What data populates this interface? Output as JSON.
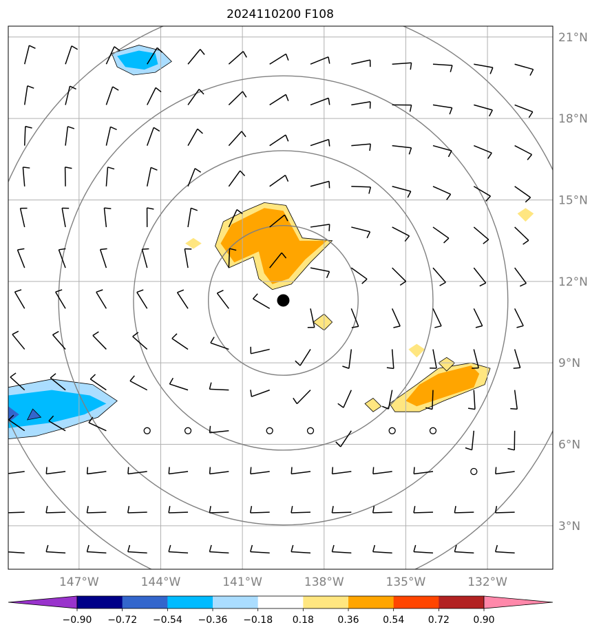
{
  "title": "2024110200 F108",
  "map": {
    "lon_range": [
      -149.6,
      -129.6
    ],
    "lat_range": [
      1.4,
      21.4
    ],
    "grid_lons": [
      -147,
      -144,
      -141,
      -138,
      -135,
      -132
    ],
    "grid_lats": [
      3,
      6,
      9,
      12,
      15,
      18,
      21
    ],
    "lon_labels": [
      "147°W",
      "144°W",
      "141°W",
      "138°W",
      "135°W",
      "132°W"
    ],
    "lat_labels": [
      "3°N",
      "6°N",
      "9°N",
      "12°N",
      "15°N",
      "18°N",
      "21°N"
    ],
    "storm_center": {
      "lon": -139.5,
      "lat": 11.3
    },
    "range_rings_deg": [
      2.75,
      5.5,
      8.25,
      11.0
    ],
    "colors": {
      "grid": "#b0b0b0",
      "ring": "#808080",
      "barb": "#000000",
      "storm": "#000000",
      "label": "#808080"
    }
  },
  "colorbar": {
    "tick_labels": [
      "−0.90",
      "−0.72",
      "−0.54",
      "−0.36",
      "−0.18",
      "0.18",
      "0.36",
      "0.54",
      "0.72",
      "0.90"
    ],
    "colors": [
      "#9933cc",
      "#000088",
      "#3366cc",
      "#00bbff",
      "#aaddff",
      "#ffffff",
      "#ffe680",
      "#ffa500",
      "#ff4500",
      "#b22222",
      "#ff88aa"
    ]
  },
  "fields": {
    "positive": [
      {
        "level": "0.18",
        "color": "#ffe680",
        "points": [
          [
            -140.9,
            14.6
          ],
          [
            -140.2,
            14.9
          ],
          [
            -139.4,
            14.8
          ],
          [
            -138.8,
            13.6
          ],
          [
            -137.7,
            13.5
          ],
          [
            -138.5,
            12.7
          ],
          [
            -139.2,
            11.9
          ],
          [
            -139.9,
            11.7
          ],
          [
            -140.4,
            12.1
          ],
          [
            -140.6,
            12.9
          ],
          [
            -141.5,
            12.5
          ],
          [
            -142.0,
            13.3
          ],
          [
            -141.7,
            14.2
          ]
        ]
      },
      {
        "level": "0.36",
        "color": "#ffa500",
        "points": [
          [
            -140.8,
            14.4
          ],
          [
            -140.2,
            14.7
          ],
          [
            -139.5,
            14.6
          ],
          [
            -138.9,
            13.5
          ],
          [
            -137.9,
            13.5
          ],
          [
            -138.7,
            12.8
          ],
          [
            -139.3,
            12.1
          ],
          [
            -139.9,
            11.9
          ],
          [
            -140.2,
            12.3
          ],
          [
            -140.4,
            13.1
          ],
          [
            -141.3,
            12.7
          ],
          [
            -141.8,
            13.4
          ],
          [
            -141.4,
            14.1
          ]
        ]
      },
      {
        "level": "0.18",
        "color": "#ffe680",
        "points": [
          [
            -135.6,
            7.5
          ],
          [
            -134.6,
            8.2
          ],
          [
            -133.8,
            8.8
          ],
          [
            -132.6,
            9.0
          ],
          [
            -131.9,
            8.8
          ],
          [
            -132.1,
            8.2
          ],
          [
            -133.6,
            7.6
          ],
          [
            -134.5,
            7.2
          ],
          [
            -135.4,
            7.2
          ]
        ]
      },
      {
        "level": "0.36",
        "color": "#ffa500",
        "points": [
          [
            -135.0,
            7.6
          ],
          [
            -134.5,
            8.2
          ],
          [
            -133.8,
            8.6
          ],
          [
            -132.6,
            8.9
          ],
          [
            -132.3,
            8.6
          ],
          [
            -132.5,
            8.1
          ],
          [
            -133.7,
            7.7
          ],
          [
            -134.6,
            7.4
          ]
        ]
      },
      {
        "level": "0.18",
        "color": "#ffe680",
        "points": [
          [
            -138.4,
            10.5
          ],
          [
            -138.0,
            10.8
          ],
          [
            -137.7,
            10.5
          ],
          [
            -138.0,
            10.2
          ]
        ]
      },
      {
        "level": "0.18",
        "color": "#ffe680",
        "points": [
          [
            -142.8,
            13.6
          ],
          [
            -142.5,
            13.4
          ],
          [
            -142.8,
            13.2
          ],
          [
            -143.1,
            13.4
          ]
        ]
      },
      {
        "level": "0.18",
        "color": "#ffe680",
        "points": [
          [
            -136.2,
            7.7
          ],
          [
            -135.9,
            7.4
          ],
          [
            -136.2,
            7.2
          ],
          [
            -136.5,
            7.5
          ]
        ]
      },
      {
        "level": "0.18",
        "color": "#ffe680",
        "points": [
          [
            -134.6,
            9.7
          ],
          [
            -134.3,
            9.5
          ],
          [
            -134.6,
            9.2
          ],
          [
            -134.9,
            9.5
          ]
        ]
      },
      {
        "level": "0.18",
        "color": "#ffe680",
        "points": [
          [
            -133.5,
            9.2
          ],
          [
            -133.2,
            9.0
          ],
          [
            -133.5,
            8.7
          ],
          [
            -133.8,
            9.0
          ]
        ]
      },
      {
        "level": "0.18",
        "color": "#ffe680",
        "points": [
          [
            -130.6,
            14.7
          ],
          [
            -130.3,
            14.5
          ],
          [
            -130.6,
            14.2
          ],
          [
            -130.9,
            14.5
          ]
        ]
      }
    ],
    "negative": [
      {
        "level": "-0.18",
        "color": "#aaddff",
        "points": [
          [
            -149.6,
            8.1
          ],
          [
            -148.0,
            8.4
          ],
          [
            -146.5,
            8.2
          ],
          [
            -145.6,
            7.6
          ],
          [
            -146.3,
            7.0
          ],
          [
            -147.5,
            6.6
          ],
          [
            -148.6,
            6.3
          ],
          [
            -149.6,
            6.2
          ]
        ]
      },
      {
        "level": "-0.36",
        "color": "#00bbff",
        "points": [
          [
            -149.6,
            7.8
          ],
          [
            -148.0,
            8.0
          ],
          [
            -146.6,
            7.8
          ],
          [
            -146.0,
            7.5
          ],
          [
            -146.8,
            7.1
          ],
          [
            -148.0,
            6.8
          ],
          [
            -149.6,
            6.6
          ]
        ]
      },
      {
        "level": "-0.54",
        "color": "#3366cc",
        "points": [
          [
            -148.7,
            7.3
          ],
          [
            -148.4,
            7.0
          ],
          [
            -148.9,
            6.9
          ]
        ]
      },
      {
        "level": "-0.54",
        "color": "#3366cc",
        "points": [
          [
            -149.6,
            7.4
          ],
          [
            -149.2,
            7.1
          ],
          [
            -149.6,
            6.8
          ]
        ]
      },
      {
        "level": "-0.18",
        "color": "#aaddff",
        "points": [
          [
            -145.8,
            20.4
          ],
          [
            -144.8,
            20.7
          ],
          [
            -144.0,
            20.5
          ],
          [
            -143.6,
            20.1
          ],
          [
            -144.2,
            19.7
          ],
          [
            -145.0,
            19.6
          ],
          [
            -145.6,
            19.9
          ]
        ]
      },
      {
        "level": "-0.36",
        "color": "#00bbff",
        "points": [
          [
            -145.6,
            20.3
          ],
          [
            -144.8,
            20.5
          ],
          [
            -144.2,
            20.4
          ],
          [
            -144.1,
            20.0
          ],
          [
            -144.6,
            19.8
          ],
          [
            -145.3,
            19.9
          ]
        ]
      }
    ]
  }
}
